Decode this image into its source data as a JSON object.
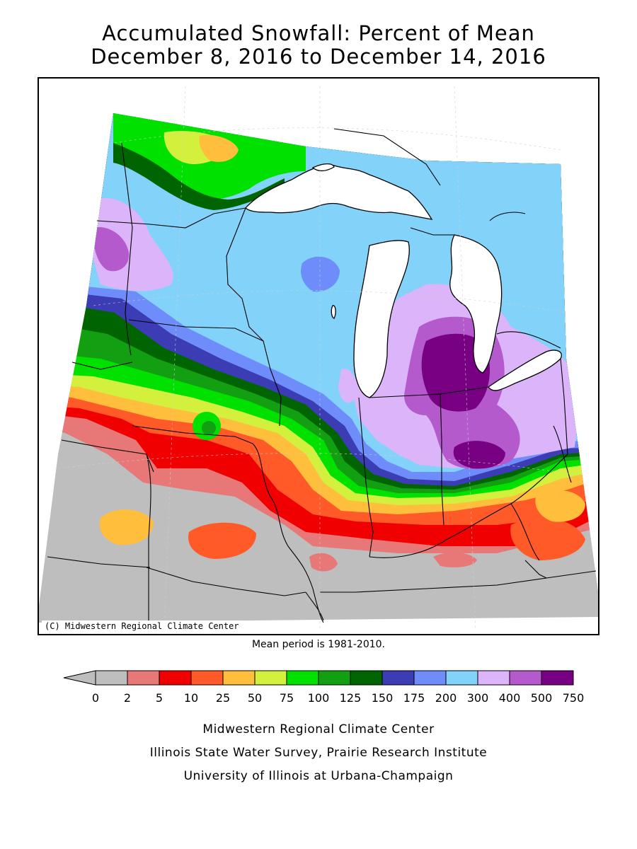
{
  "title": {
    "line1": "Accumulated Snowfall: Percent of Mean",
    "line2": "December 8, 2016 to December 14, 2016"
  },
  "map": {
    "copyright": "(C) Midwestern Regional Climate Center",
    "lake_color": "#ffffff",
    "border_color": "#000000"
  },
  "mean_period": "Mean period is 1981-2010.",
  "legend": {
    "tick_labels": [
      "0",
      "2",
      "5",
      "10",
      "25",
      "50",
      "75",
      "100",
      "125",
      "150",
      "175",
      "200",
      "300",
      "400",
      "500",
      "750"
    ],
    "colors": [
      "#bebebe",
      "#e87878",
      "#f00000",
      "#ff5a28",
      "#ffbe3c",
      "#d2f03c",
      "#00e100",
      "#12a012",
      "#006400",
      "#3c3cb4",
      "#6e8cfa",
      "#82d2fa",
      "#dcb4fa",
      "#b45acd",
      "#780082"
    ]
  },
  "footer": {
    "line1": "Midwestern Regional Climate Center",
    "line2": "Illinois State Water Survey, Prairie Research Institute",
    "line3": "University of Illinois at Urbana-Champaign"
  }
}
